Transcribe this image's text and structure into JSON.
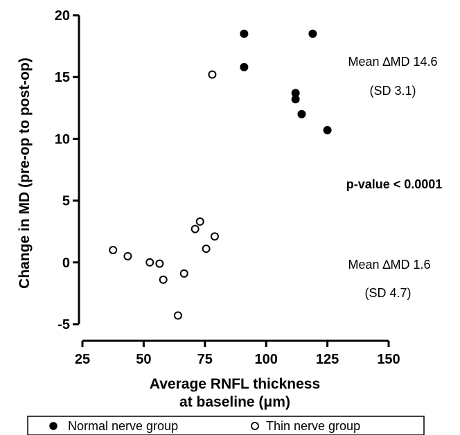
{
  "chart_data": {
    "type": "scatter",
    "xlabel_line1": "Average RNFL thickness",
    "xlabel_line2": "at baseline (μm)",
    "ylabel": "Change in MD (pre-op to post-op)",
    "xlim": [
      25,
      150
    ],
    "ylim": [
      -5,
      20
    ],
    "x_ticks": [
      25,
      50,
      75,
      100,
      125,
      150
    ],
    "y_ticks": [
      -5,
      0,
      5,
      10,
      15,
      20
    ],
    "x_tick_labels": [
      "25",
      "50",
      "75",
      "100",
      "125",
      "150"
    ],
    "y_tick_labels": [
      "-5",
      "0",
      "5",
      "10",
      "15",
      "20"
    ],
    "grid": false,
    "legend_placement": "bottom",
    "series": [
      {
        "name": "Normal nerve group",
        "marker": "filled-circle",
        "color": "#000000",
        "points": [
          {
            "x": 91,
            "y": 18.5
          },
          {
            "x": 91,
            "y": 15.8
          },
          {
            "x": 119,
            "y": 18.5
          },
          {
            "x": 112,
            "y": 13.7
          },
          {
            "x": 112,
            "y": 13.2
          },
          {
            "x": 114.5,
            "y": 12.0
          },
          {
            "x": 125,
            "y": 10.7
          }
        ]
      },
      {
        "name": "Thin nerve group",
        "marker": "open-circle",
        "color": "#000000",
        "points": [
          {
            "x": 78,
            "y": 15.2
          },
          {
            "x": 37.5,
            "y": 1.0
          },
          {
            "x": 43.5,
            "y": 0.5
          },
          {
            "x": 52.5,
            "y": 0.0
          },
          {
            "x": 56.5,
            "y": -0.1
          },
          {
            "x": 58,
            "y": -1.4
          },
          {
            "x": 64,
            "y": -4.3
          },
          {
            "x": 66.5,
            "y": -0.9
          },
          {
            "x": 71,
            "y": 2.7
          },
          {
            "x": 73,
            "y": 3.3
          },
          {
            "x": 75.5,
            "y": 1.1
          },
          {
            "x": 79,
            "y": 2.1
          }
        ]
      }
    ],
    "annotations": [
      {
        "id": "normal-mean",
        "text": "Mean ∆MD 14.6",
        "bold": false
      },
      {
        "id": "normal-sd",
        "text": "(SD 3.1)",
        "bold": false
      },
      {
        "id": "pvalue",
        "text": "p-value < 0.0001",
        "bold": true
      },
      {
        "id": "thin-mean",
        "text": "Mean ∆MD 1.6",
        "bold": false
      },
      {
        "id": "thin-sd",
        "text": "(SD 4.7)",
        "bold": false
      }
    ]
  }
}
